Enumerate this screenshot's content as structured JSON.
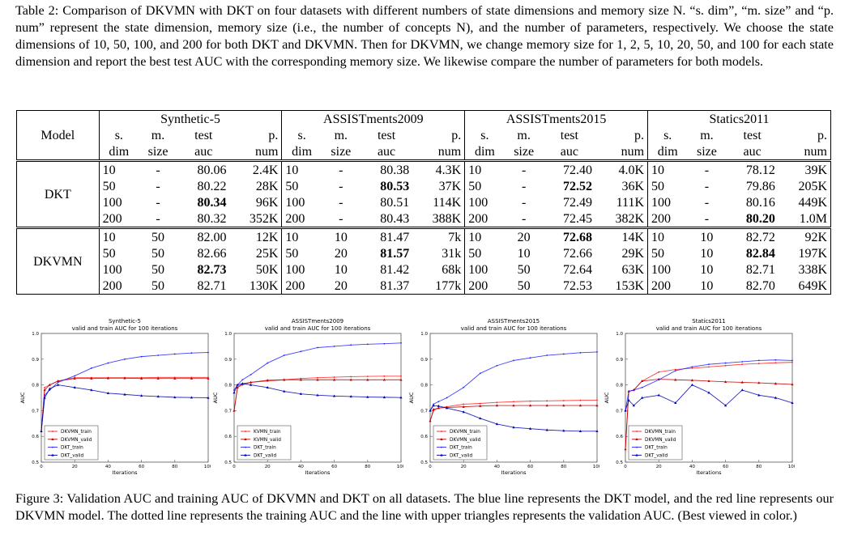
{
  "table_caption": "Table 2: Comparison of DKVMN with DKT on four datasets with different numbers of state dimensions and memory size N. “s. dim”, “m. size” and “p. num” represent the state dimension, memory size (i.e., the number of concepts N), and the number of parameters, respectively. We choose the state dimensions of 10, 50, 100, and 200 for both DKT and DKVMN. Then for DKVMN, we change memory size for 1, 2, 5, 10, 20, 50, and 100 for each state dimension and report the best test AUC with the corresponding memory size. We likewise compare the number of parameters for both models.",
  "table": {
    "model_header": "Model",
    "datasets": [
      "Synthetic-5",
      "ASSISTments2009",
      "ASSISTments2015",
      "Statics2011"
    ],
    "col_head_top": [
      "s.",
      "m.",
      "test",
      "p."
    ],
    "col_head_bottom": [
      "dim",
      "size",
      "auc",
      "num"
    ],
    "groups": [
      {
        "model": "DKT",
        "rows": [
          {
            "cells": [
              "10",
              "-",
              "80.06",
              "2.4K",
              "10",
              "-",
              "80.38",
              "4.3K",
              "10",
              "-",
              "72.40",
              "4.0K",
              "10",
              "-",
              "78.12",
              "39K"
            ],
            "bold": []
          },
          {
            "cells": [
              "50",
              "-",
              "80.22",
              "28K",
              "50",
              "-",
              "80.53",
              "37K",
              "50",
              "-",
              "72.52",
              "36K",
              "50",
              "-",
              "79.86",
              "205K"
            ],
            "bold": [
              6,
              10
            ]
          },
          {
            "cells": [
              "100",
              "-",
              "80.34",
              "96K",
              "100",
              "-",
              "80.51",
              "114K",
              "100",
              "-",
              "72.49",
              "111K",
              "100",
              "-",
              "80.16",
              "449K"
            ],
            "bold": [
              2
            ]
          },
          {
            "cells": [
              "200",
              "-",
              "80.32",
              "352K",
              "200",
              "-",
              "80.43",
              "388K",
              "200",
              "-",
              "72.45",
              "382K",
              "200",
              "-",
              "80.20",
              "1.0M"
            ],
            "bold": [
              14
            ]
          }
        ]
      },
      {
        "model": "DKVMN",
        "rows": [
          {
            "cells": [
              "10",
              "50",
              "82.00",
              "12K",
              "10",
              "10",
              "81.47",
              "7k",
              "10",
              "20",
              "72.68",
              "14K",
              "10",
              "10",
              "82.72",
              "92K"
            ],
            "bold": [
              10
            ]
          },
          {
            "cells": [
              "50",
              "50",
              "82.66",
              "25K",
              "50",
              "20",
              "81.57",
              "31k",
              "50",
              "10",
              "72.66",
              "29K",
              "50",
              "10",
              "82.84",
              "197K"
            ],
            "bold": [
              6,
              14
            ]
          },
          {
            "cells": [
              "100",
              "50",
              "82.73",
              "50K",
              "100",
              "10",
              "81.42",
              "68k",
              "100",
              "50",
              "72.64",
              "63K",
              "100",
              "10",
              "82.71",
              "338K"
            ],
            "bold": [
              2
            ]
          },
          {
            "cells": [
              "200",
              "50",
              "82.71",
              "130K",
              "200",
              "20",
              "81.37",
              "177k",
              "200",
              "50",
              "72.53",
              "153K",
              "200",
              "10",
              "82.70",
              "649K"
            ],
            "bold": []
          }
        ]
      }
    ]
  },
  "chart_data": [
    {
      "type": "line",
      "title": "Synthetic-5",
      "subtitle": "valid and train AUC for 100 iterations",
      "xlabel": "Iterations",
      "ylabel": "AUC",
      "xlim": [
        0,
        100
      ],
      "ylim": [
        0.5,
        1.0
      ],
      "xticks": [
        "0",
        "20",
        "40",
        "60",
        "80",
        "100"
      ],
      "yticks": [
        "0.5",
        "0.6",
        "0.7",
        "0.8",
        "0.9",
        "1.0"
      ],
      "legend": "lower-left",
      "x": [
        0,
        2,
        5,
        10,
        20,
        30,
        40,
        50,
        60,
        70,
        80,
        90,
        100
      ],
      "series": [
        {
          "name": "DKVMN_train",
          "color": "#ff2020",
          "marker": "dot",
          "values": [
            0.62,
            0.79,
            0.8,
            0.815,
            0.828,
            0.828,
            0.828,
            0.828,
            0.828,
            0.829,
            0.829,
            0.829,
            0.829
          ]
        },
        {
          "name": "DKVMN_valid",
          "color": "#c00000",
          "marker": "triangle",
          "values": [
            0.62,
            0.78,
            0.8,
            0.815,
            0.825,
            0.825,
            0.826,
            0.826,
            0.825,
            0.825,
            0.825,
            0.825,
            0.825
          ]
        },
        {
          "name": "DKT_train",
          "color": "#2020ff",
          "marker": "dot",
          "values": [
            0.62,
            0.76,
            0.78,
            0.81,
            0.835,
            0.865,
            0.885,
            0.9,
            0.91,
            0.915,
            0.92,
            0.924,
            0.926
          ]
        },
        {
          "name": "DKT_valid",
          "color": "#0000b0",
          "marker": "triangle",
          "values": [
            0.62,
            0.75,
            0.785,
            0.8,
            0.79,
            0.78,
            0.768,
            0.763,
            0.758,
            0.755,
            0.752,
            0.751,
            0.75
          ]
        }
      ]
    },
    {
      "type": "line",
      "title": "ASSISTments2009",
      "subtitle": "valid and train AUC for 100 iterations",
      "xlabel": "Iterations",
      "ylabel": "AUC",
      "xlim": [
        0,
        100
      ],
      "ylim": [
        0.5,
        1.0
      ],
      "xticks": [
        "0",
        "20",
        "40",
        "60",
        "80",
        "100"
      ],
      "yticks": [
        "0.5",
        "0.6",
        "0.7",
        "0.8",
        "0.9",
        "1.0"
      ],
      "legend": "lower-left",
      "x": [
        0,
        2,
        5,
        10,
        20,
        30,
        40,
        50,
        60,
        70,
        80,
        90,
        100
      ],
      "series": [
        {
          "name": "KVMN_train",
          "color": "#ff2020",
          "marker": "dot",
          "values": [
            0.7,
            0.79,
            0.8,
            0.81,
            0.815,
            0.82,
            0.825,
            0.828,
            0.83,
            0.832,
            0.833,
            0.834,
            0.834
          ]
        },
        {
          "name": "KVMN_valid",
          "color": "#c00000",
          "marker": "triangle",
          "values": [
            0.7,
            0.79,
            0.805,
            0.81,
            0.818,
            0.82,
            0.82,
            0.82,
            0.82,
            0.82,
            0.82,
            0.82,
            0.82
          ]
        },
        {
          "name": "DKT_train",
          "color": "#2020ff",
          "marker": "dot",
          "values": [
            0.78,
            0.8,
            0.82,
            0.84,
            0.885,
            0.915,
            0.93,
            0.945,
            0.95,
            0.955,
            0.958,
            0.96,
            0.963
          ]
        },
        {
          "name": "DKT_valid",
          "color": "#0000b0",
          "marker": "triangle",
          "values": [
            0.77,
            0.8,
            0.805,
            0.8,
            0.79,
            0.775,
            0.765,
            0.76,
            0.757,
            0.755,
            0.753,
            0.752,
            0.751
          ]
        }
      ]
    },
    {
      "type": "line",
      "title": "ASSISTments2015",
      "subtitle": "valid and train AUC for 100 iterations",
      "xlabel": "Iterations",
      "ylabel": "AUC",
      "xlim": [
        0,
        100
      ],
      "ylim": [
        0.5,
        1.0
      ],
      "xticks": [
        "0",
        "20",
        "40",
        "60",
        "80",
        "100"
      ],
      "yticks": [
        "0.5",
        "0.6",
        "0.7",
        "0.8",
        "0.9",
        "1.0"
      ],
      "legend": "lower-left",
      "x": [
        0,
        2,
        5,
        10,
        20,
        30,
        40,
        50,
        60,
        70,
        80,
        90,
        100
      ],
      "series": [
        {
          "name": "DKVMN_train",
          "color": "#ff2020",
          "marker": "dot",
          "values": [
            0.66,
            0.7,
            0.71,
            0.715,
            0.725,
            0.728,
            0.732,
            0.735,
            0.737,
            0.738,
            0.739,
            0.74,
            0.741
          ]
        },
        {
          "name": "DKVMN_valid",
          "color": "#c00000",
          "marker": "triangle",
          "values": [
            0.66,
            0.705,
            0.71,
            0.712,
            0.715,
            0.718,
            0.72,
            0.72,
            0.72,
            0.72,
            0.72,
            0.72,
            0.72
          ]
        },
        {
          "name": "DKT_train",
          "color": "#2020ff",
          "marker": "dot",
          "values": [
            0.7,
            0.725,
            0.735,
            0.75,
            0.79,
            0.845,
            0.875,
            0.895,
            0.905,
            0.915,
            0.92,
            0.925,
            0.928
          ]
        },
        {
          "name": "DKT_valid",
          "color": "#0000b0",
          "marker": "triangle",
          "values": [
            0.7,
            0.72,
            0.718,
            0.71,
            0.695,
            0.67,
            0.648,
            0.635,
            0.63,
            0.625,
            0.622,
            0.62,
            0.62
          ]
        }
      ]
    },
    {
      "type": "line",
      "title": "Statics2011",
      "subtitle": "valid and train AUC for 100 iterations",
      "xlabel": "Iterations",
      "ylabel": "AUC",
      "xlim": [
        0,
        100
      ],
      "ylim": [
        0.5,
        1.0
      ],
      "xticks": [
        "0",
        "20",
        "40",
        "60",
        "80",
        "100"
      ],
      "yticks": [
        "0.5",
        "0.6",
        "0.7",
        "0.8",
        "0.9",
        "1.0"
      ],
      "legend": "lower-left",
      "x": [
        0,
        2,
        5,
        10,
        20,
        30,
        40,
        50,
        60,
        70,
        80,
        90,
        100
      ],
      "series": [
        {
          "name": "DKVMN_train",
          "color": "#ff2020",
          "marker": "dot",
          "values": [
            0.55,
            0.775,
            0.78,
            0.815,
            0.85,
            0.86,
            0.865,
            0.87,
            0.875,
            0.88,
            0.883,
            0.886,
            0.888
          ]
        },
        {
          "name": "DKVMN_valid",
          "color": "#c00000",
          "marker": "triangle",
          "values": [
            0.55,
            0.775,
            0.78,
            0.815,
            0.822,
            0.82,
            0.818,
            0.815,
            0.812,
            0.81,
            0.808,
            0.805,
            0.802
          ]
        },
        {
          "name": "DKT_train",
          "color": "#2020ff",
          "marker": "dot",
          "values": [
            0.7,
            0.775,
            0.78,
            0.79,
            0.82,
            0.855,
            0.87,
            0.88,
            0.885,
            0.89,
            0.895,
            0.897,
            0.895
          ]
        },
        {
          "name": "DKT_valid",
          "color": "#0000b0",
          "marker": "triangle",
          "values": [
            0.7,
            0.74,
            0.72,
            0.75,
            0.76,
            0.73,
            0.8,
            0.77,
            0.72,
            0.78,
            0.76,
            0.75,
            0.73
          ]
        }
      ]
    }
  ],
  "figure_caption": "Figure 3: Validation AUC and training AUC of DKVMN and DKT on all datasets. The blue line represents the DKT model, and the red line represents our DKVMN model. The dotted line represents the training AUC and the line with upper triangles represents the validation AUC. (Best viewed in color.)"
}
